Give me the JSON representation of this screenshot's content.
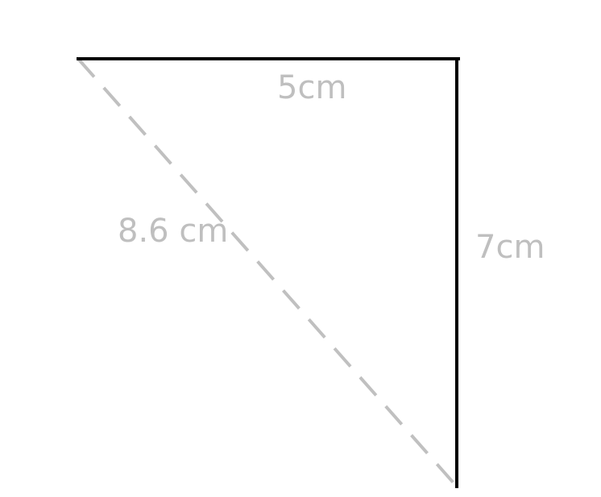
{
  "diagram": {
    "type": "right-triangle",
    "sides": {
      "top": {
        "label": "5cm",
        "style": "solid"
      },
      "right": {
        "label": "7cm",
        "style": "solid"
      },
      "hypotenuse": {
        "label": "8.6 cm",
        "style": "dashed"
      }
    },
    "colors": {
      "solid_edge": "#000000",
      "dashed_edge": "#c0c0c0",
      "label": "#bfbfbf",
      "background": "#ffffff"
    }
  }
}
